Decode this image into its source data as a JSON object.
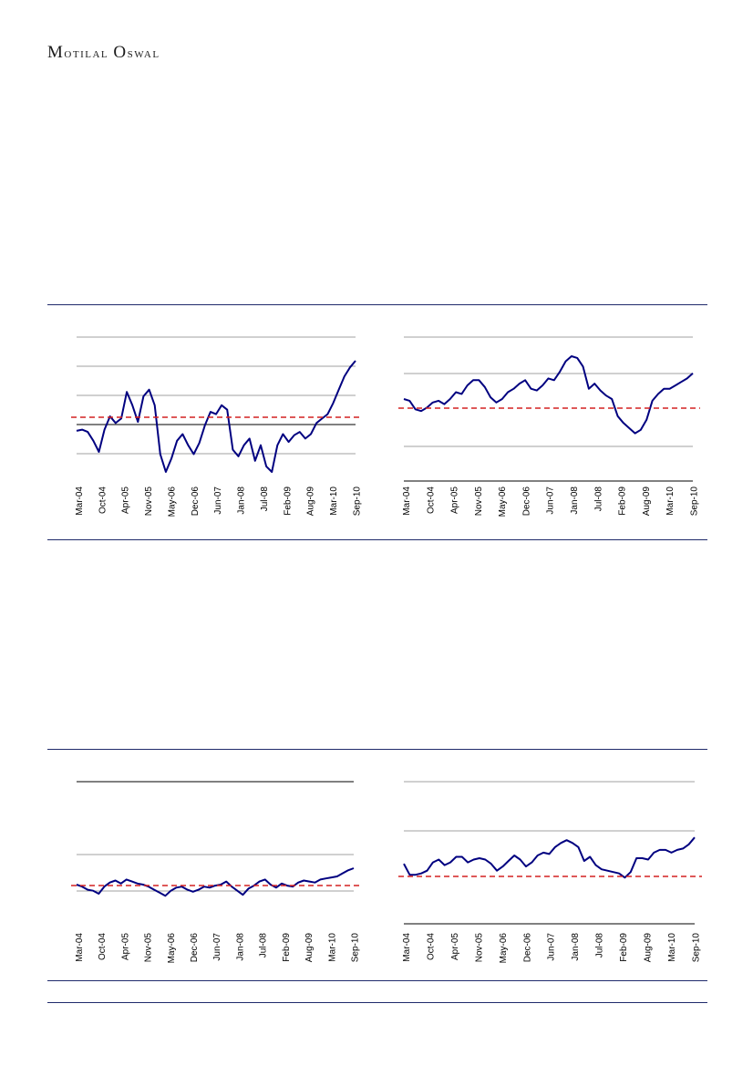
{
  "header": {
    "brand": "Motilal Oswal"
  },
  "chart_data": [
    {
      "type": "line",
      "x": [
        "Mar-04",
        "Oct-04",
        "Apr-05",
        "Nov-05",
        "May-06",
        "Dec-06",
        "Jun-07",
        "Jan-08",
        "Jul-08",
        "Feb-09",
        "Aug-09",
        "Mar-10",
        "Sep-10"
      ],
      "line_color": "#000080",
      "reference_line_color": "#d42020",
      "zero_line": true,
      "pts": [
        [
          0,
          0.37
        ],
        [
          0.02,
          0.38
        ],
        [
          0.04,
          0.36
        ],
        [
          0.06,
          0.28
        ],
        [
          0.08,
          0.18
        ],
        [
          0.1,
          0.38
        ],
        [
          0.12,
          0.5
        ],
        [
          0.14,
          0.44
        ],
        [
          0.16,
          0.48
        ],
        [
          0.18,
          0.72
        ],
        [
          0.2,
          0.6
        ],
        [
          0.22,
          0.45
        ],
        [
          0.24,
          0.68
        ],
        [
          0.26,
          0.74
        ],
        [
          0.28,
          0.6
        ],
        [
          0.3,
          0.16
        ],
        [
          0.32,
          0.0
        ],
        [
          0.34,
          0.12
        ],
        [
          0.36,
          0.28
        ],
        [
          0.38,
          0.34
        ],
        [
          0.4,
          0.24
        ],
        [
          0.42,
          0.16
        ],
        [
          0.44,
          0.26
        ],
        [
          0.46,
          0.42
        ],
        [
          0.48,
          0.54
        ],
        [
          0.5,
          0.52
        ],
        [
          0.52,
          0.6
        ],
        [
          0.54,
          0.56
        ],
        [
          0.56,
          0.2
        ],
        [
          0.58,
          0.14
        ],
        [
          0.6,
          0.24
        ],
        [
          0.62,
          0.3
        ],
        [
          0.64,
          0.1
        ],
        [
          0.66,
          0.24
        ],
        [
          0.68,
          0.05
        ],
        [
          0.7,
          0.0
        ],
        [
          0.72,
          0.24
        ],
        [
          0.74,
          0.34
        ],
        [
          0.76,
          0.27
        ],
        [
          0.78,
          0.33
        ],
        [
          0.8,
          0.36
        ],
        [
          0.82,
          0.3
        ],
        [
          0.84,
          0.34
        ],
        [
          0.86,
          0.44
        ],
        [
          0.88,
          0.48
        ],
        [
          0.9,
          0.52
        ],
        [
          0.92,
          0.62
        ],
        [
          0.94,
          0.74
        ],
        [
          0.96,
          0.86
        ],
        [
          0.98,
          0.94
        ],
        [
          1.0,
          1.0
        ]
      ]
    },
    {
      "type": "line",
      "x": [
        "Mar-04",
        "Oct-04",
        "Apr-05",
        "Nov-05",
        "May-06",
        "Dec-06",
        "Jun-07",
        "Jan-08",
        "Jul-08",
        "Feb-09",
        "Aug-09",
        "Mar-10",
        "Sep-10"
      ],
      "line_color": "#000080",
      "reference_line_color": "#d42020",
      "pts": [
        [
          0,
          0.5
        ],
        [
          0.02,
          0.48
        ],
        [
          0.04,
          0.38
        ],
        [
          0.06,
          0.36
        ],
        [
          0.08,
          0.4
        ],
        [
          0.1,
          0.46
        ],
        [
          0.12,
          0.48
        ],
        [
          0.14,
          0.44
        ],
        [
          0.16,
          0.5
        ],
        [
          0.18,
          0.58
        ],
        [
          0.2,
          0.56
        ],
        [
          0.22,
          0.66
        ],
        [
          0.24,
          0.72
        ],
        [
          0.26,
          0.72
        ],
        [
          0.28,
          0.64
        ],
        [
          0.3,
          0.52
        ],
        [
          0.32,
          0.46
        ],
        [
          0.34,
          0.5
        ],
        [
          0.36,
          0.58
        ],
        [
          0.38,
          0.62
        ],
        [
          0.4,
          0.68
        ],
        [
          0.42,
          0.72
        ],
        [
          0.44,
          0.62
        ],
        [
          0.46,
          0.6
        ],
        [
          0.48,
          0.66
        ],
        [
          0.5,
          0.74
        ],
        [
          0.52,
          0.72
        ],
        [
          0.54,
          0.82
        ],
        [
          0.56,
          0.94
        ],
        [
          0.58,
          1.0
        ],
        [
          0.6,
          0.98
        ],
        [
          0.62,
          0.88
        ],
        [
          0.64,
          0.62
        ],
        [
          0.66,
          0.68
        ],
        [
          0.68,
          0.6
        ],
        [
          0.7,
          0.54
        ],
        [
          0.72,
          0.5
        ],
        [
          0.74,
          0.3
        ],
        [
          0.76,
          0.22
        ],
        [
          0.78,
          0.16
        ],
        [
          0.8,
          0.1
        ],
        [
          0.82,
          0.14
        ],
        [
          0.84,
          0.26
        ],
        [
          0.86,
          0.48
        ],
        [
          0.88,
          0.56
        ],
        [
          0.9,
          0.62
        ],
        [
          0.92,
          0.62
        ],
        [
          0.94,
          0.66
        ],
        [
          0.96,
          0.7
        ],
        [
          0.98,
          0.74
        ],
        [
          1.0,
          0.8
        ]
      ]
    },
    {
      "type": "line",
      "x": [
        "Mar-04",
        "Oct-04",
        "Apr-05",
        "Nov-05",
        "May-06",
        "Dec-06",
        "Jun-07",
        "Jan-08",
        "Jul-08",
        "Feb-09",
        "Aug-09",
        "Mar-10",
        "Sep-10"
      ],
      "line_color": "#000080",
      "reference_line_color": "#d42020",
      "pts": [
        [
          0,
          0.34
        ],
        [
          0.02,
          0.3
        ],
        [
          0.04,
          0.24
        ],
        [
          0.06,
          0.22
        ],
        [
          0.08,
          0.16
        ],
        [
          0.1,
          0.3
        ],
        [
          0.12,
          0.38
        ],
        [
          0.14,
          0.42
        ],
        [
          0.16,
          0.36
        ],
        [
          0.18,
          0.44
        ],
        [
          0.2,
          0.4
        ],
        [
          0.22,
          0.36
        ],
        [
          0.24,
          0.34
        ],
        [
          0.26,
          0.3
        ],
        [
          0.28,
          0.24
        ],
        [
          0.3,
          0.18
        ],
        [
          0.32,
          0.12
        ],
        [
          0.34,
          0.22
        ],
        [
          0.36,
          0.28
        ],
        [
          0.38,
          0.3
        ],
        [
          0.4,
          0.24
        ],
        [
          0.42,
          0.2
        ],
        [
          0.44,
          0.24
        ],
        [
          0.46,
          0.3
        ],
        [
          0.48,
          0.28
        ],
        [
          0.5,
          0.32
        ],
        [
          0.52,
          0.34
        ],
        [
          0.54,
          0.4
        ],
        [
          0.56,
          0.3
        ],
        [
          0.58,
          0.22
        ],
        [
          0.6,
          0.14
        ],
        [
          0.62,
          0.26
        ],
        [
          0.64,
          0.32
        ],
        [
          0.66,
          0.4
        ],
        [
          0.68,
          0.44
        ],
        [
          0.7,
          0.34
        ],
        [
          0.72,
          0.28
        ],
        [
          0.74,
          0.36
        ],
        [
          0.76,
          0.32
        ],
        [
          0.78,
          0.3
        ],
        [
          0.8,
          0.38
        ],
        [
          0.82,
          0.42
        ],
        [
          0.84,
          0.4
        ],
        [
          0.86,
          0.38
        ],
        [
          0.88,
          0.44
        ],
        [
          0.9,
          0.46
        ],
        [
          0.92,
          0.48
        ],
        [
          0.94,
          0.5
        ],
        [
          0.96,
          0.56
        ],
        [
          0.98,
          0.62
        ],
        [
          1.0,
          0.66
        ]
      ]
    },
    {
      "type": "line",
      "x": [
        "Mar-04",
        "Oct-04",
        "Apr-05",
        "Nov-05",
        "May-06",
        "Dec-06",
        "Jun-07",
        "Jan-08",
        "Jul-08",
        "Feb-09",
        "Aug-09",
        "Mar-10",
        "Sep-10"
      ],
      "line_color": "#000080",
      "reference_line_color": "#d42020",
      "pts": [
        [
          0,
          0.42
        ],
        [
          0.02,
          0.26
        ],
        [
          0.04,
          0.26
        ],
        [
          0.06,
          0.28
        ],
        [
          0.08,
          0.32
        ],
        [
          0.1,
          0.44
        ],
        [
          0.12,
          0.48
        ],
        [
          0.14,
          0.4
        ],
        [
          0.16,
          0.44
        ],
        [
          0.18,
          0.52
        ],
        [
          0.2,
          0.52
        ],
        [
          0.22,
          0.44
        ],
        [
          0.24,
          0.48
        ],
        [
          0.26,
          0.5
        ],
        [
          0.28,
          0.48
        ],
        [
          0.3,
          0.42
        ],
        [
          0.32,
          0.32
        ],
        [
          0.34,
          0.38
        ],
        [
          0.36,
          0.46
        ],
        [
          0.38,
          0.54
        ],
        [
          0.4,
          0.48
        ],
        [
          0.42,
          0.38
        ],
        [
          0.44,
          0.44
        ],
        [
          0.46,
          0.54
        ],
        [
          0.48,
          0.58
        ],
        [
          0.5,
          0.56
        ],
        [
          0.52,
          0.66
        ],
        [
          0.54,
          0.72
        ],
        [
          0.56,
          0.76
        ],
        [
          0.58,
          0.72
        ],
        [
          0.6,
          0.66
        ],
        [
          0.62,
          0.46
        ],
        [
          0.64,
          0.52
        ],
        [
          0.66,
          0.4
        ],
        [
          0.68,
          0.34
        ],
        [
          0.7,
          0.32
        ],
        [
          0.72,
          0.3
        ],
        [
          0.74,
          0.28
        ],
        [
          0.76,
          0.22
        ],
        [
          0.78,
          0.3
        ],
        [
          0.8,
          0.5
        ],
        [
          0.82,
          0.5
        ],
        [
          0.84,
          0.48
        ],
        [
          0.86,
          0.58
        ],
        [
          0.88,
          0.62
        ],
        [
          0.9,
          0.62
        ],
        [
          0.92,
          0.58
        ],
        [
          0.94,
          0.62
        ],
        [
          0.96,
          0.64
        ],
        [
          0.98,
          0.7
        ],
        [
          1.0,
          0.8
        ]
      ]
    }
  ]
}
